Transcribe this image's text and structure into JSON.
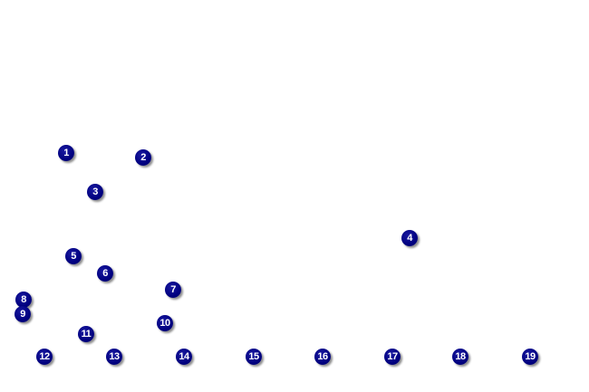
{
  "colors": {
    "marker_fill": "#000080",
    "marker_text": "#ffffff",
    "background": "#ffffff"
  },
  "markers": [
    {
      "label": "1"
    },
    {
      "label": "2"
    },
    {
      "label": "3"
    },
    {
      "label": "4"
    },
    {
      "label": "5"
    },
    {
      "label": "6"
    },
    {
      "label": "7"
    },
    {
      "label": "8"
    },
    {
      "label": "9"
    },
    {
      "label": "10"
    },
    {
      "label": "11"
    },
    {
      "label": "12"
    },
    {
      "label": "13"
    },
    {
      "label": "14"
    },
    {
      "label": "15"
    },
    {
      "label": "16"
    },
    {
      "label": "17"
    },
    {
      "label": "18"
    },
    {
      "label": "19"
    }
  ]
}
